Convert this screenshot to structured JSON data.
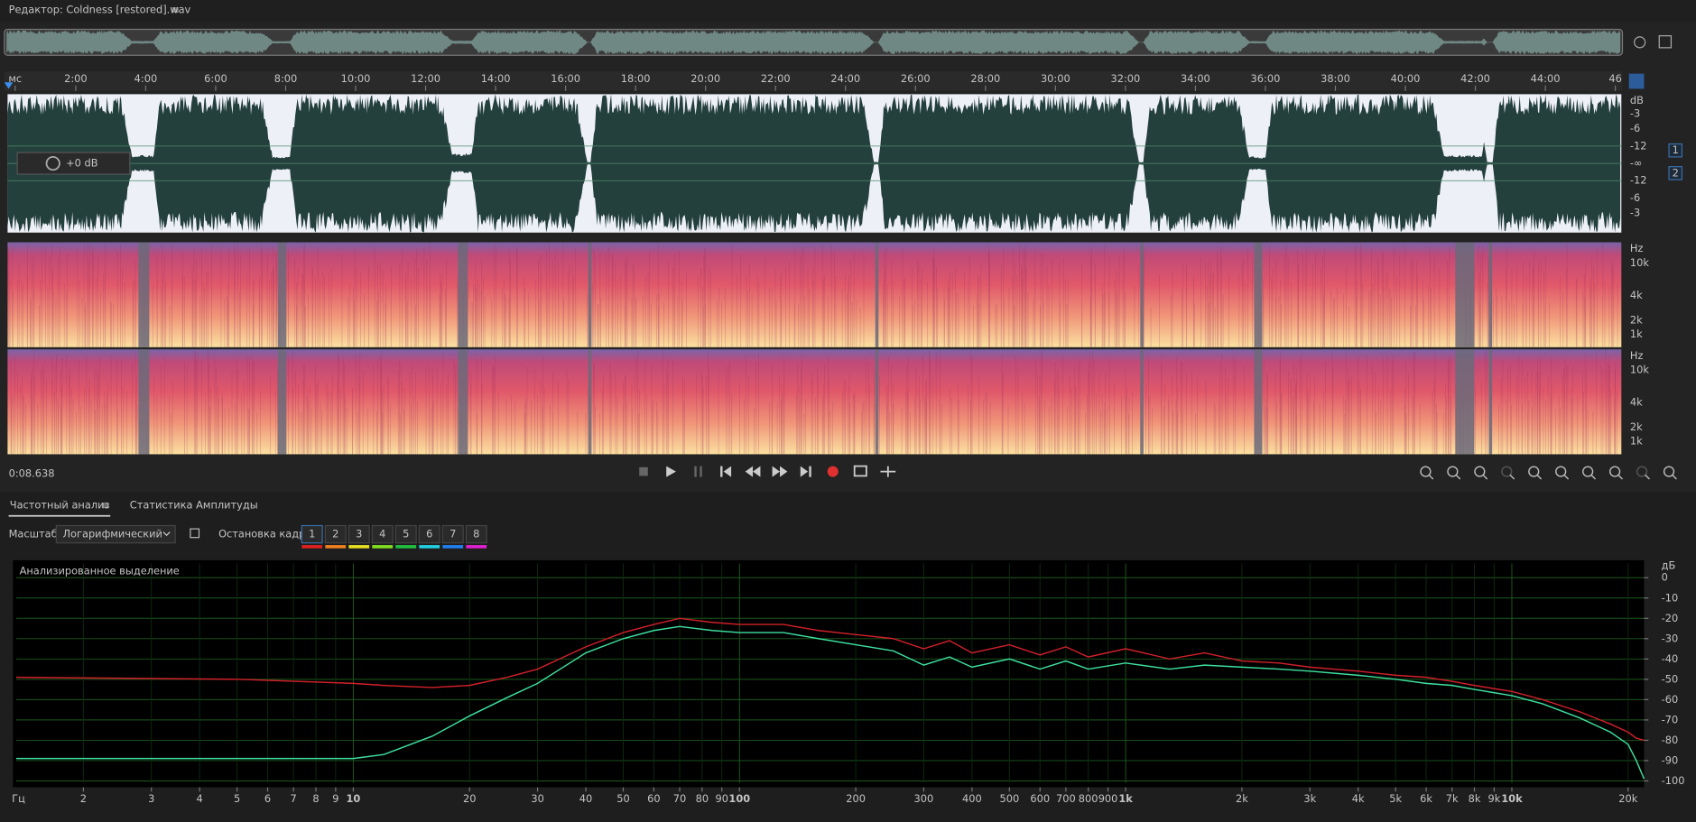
{
  "header": {
    "title": "Редактор: Coldness [restored].wav"
  },
  "timeline": {
    "labels": [
      "мс",
      "2:00",
      "4:00",
      "6:00",
      "8:00",
      "10:00",
      "12:00",
      "14:00",
      "16:00",
      "18:00",
      "20:00",
      "22:00",
      "24:00",
      "26:00",
      "28:00",
      "30:00",
      "32:00",
      "34:00",
      "36:00",
      "38:00",
      "40:00",
      "42:00",
      "44:00",
      "46"
    ]
  },
  "waveform": {
    "db_labels": [
      "dB",
      "-3",
      "-6",
      "-12",
      "-∞",
      "-12",
      "-6",
      "-3"
    ],
    "volume": "+0 dB"
  },
  "channels": [
    "1",
    "2"
  ],
  "spectrogram": {
    "hz_labels": [
      "Hz",
      "10k",
      "4k",
      "2k",
      "1k"
    ]
  },
  "time_display": "0:08.638",
  "panel": {
    "tabs": [
      "Частотный анализ",
      "Статистика Амплитуды"
    ],
    "scale_label": "Масштаб:",
    "scale_value": "Логарифмический",
    "frame_hold_label": "Остановка кадра:",
    "frame_buttons": [
      {
        "label": "1",
        "color": "#e02020"
      },
      {
        "label": "2",
        "color": "#f08020"
      },
      {
        "label": "3",
        "color": "#e8e020"
      },
      {
        "label": "4",
        "color": "#80e020"
      },
      {
        "label": "5",
        "color": "#20c040"
      },
      {
        "label": "6",
        "color": "#20d0e0"
      },
      {
        "label": "7",
        "color": "#2080f0"
      },
      {
        "label": "8",
        "color": "#e020d0"
      }
    ]
  },
  "chart_data": {
    "type": "line",
    "annotation": "Анализированное выделение",
    "x_unit": "Гц",
    "y_unit": "дБ",
    "log_x": true,
    "grid": true,
    "x": [
      1.34,
      5,
      10,
      12,
      16,
      20,
      25,
      30,
      40,
      50,
      60,
      70,
      85,
      100,
      130,
      160,
      200,
      250,
      300,
      350,
      400,
      500,
      600,
      700,
      800,
      1000,
      1300,
      1600,
      2000,
      2500,
      3000,
      4000,
      5000,
      6000,
      7000,
      8000,
      10000,
      12000,
      15000,
      18000,
      20000,
      21000,
      22000
    ],
    "xlim": [
      1.34,
      22000
    ],
    "xticks": [
      2,
      3,
      4,
      5,
      6,
      7,
      8,
      9,
      10,
      20,
      30,
      40,
      50,
      60,
      70,
      80,
      90,
      100,
      200,
      300,
      400,
      500,
      600,
      700,
      800,
      900,
      {
        "value": 1000,
        "label": "1k"
      },
      {
        "value": 2000,
        "label": "2k"
      },
      {
        "value": 3000,
        "label": "3k"
      },
      {
        "value": 4000,
        "label": "4k"
      },
      {
        "value": 5000,
        "label": "5k"
      },
      {
        "value": 6000,
        "label": "6k"
      },
      {
        "value": 7000,
        "label": "7k"
      },
      {
        "value": 8000,
        "label": "8k"
      },
      {
        "value": 9000,
        "label": "9k"
      },
      {
        "value": 10000,
        "label": "10k"
      },
      {
        "value": 20000,
        "label": "20k"
      }
    ],
    "ylim": [
      -101,
      7
    ],
    "yticks": [
      0,
      -10,
      -20,
      -30,
      -40,
      -50,
      -60,
      -70,
      -80,
      -90,
      -100
    ],
    "series": [
      {
        "color": "#d0202a",
        "values": [
          -49,
          -50,
          -52,
          -53,
          -54,
          -53,
          -49,
          -45,
          -34,
          -27,
          -23,
          -20,
          -22,
          -23,
          -23,
          -26,
          -28,
          -30,
          -35,
          -31,
          -37,
          -33,
          -38,
          -34,
          -39,
          -35,
          -40,
          -37,
          -41,
          -42,
          -44,
          -46,
          -48,
          -49,
          -51,
          -53,
          -56,
          -60,
          -66,
          -72,
          -76,
          -79,
          -80
        ]
      },
      {
        "color": "#3ee0a0",
        "values": [
          -89,
          -89,
          -89,
          -87,
          -78,
          -68,
          -59,
          -52,
          -37,
          -30,
          -26,
          -24,
          -26,
          -27,
          -27,
          -30,
          -33,
          -36,
          -43,
          -39,
          -44,
          -40,
          -45,
          -41,
          -45,
          -42,
          -45,
          -43,
          -44,
          -45,
          -46,
          -48,
          -50,
          -52,
          -53,
          -55,
          -58,
          -62,
          -69,
          -76,
          -82,
          -90,
          -99
        ]
      }
    ]
  }
}
